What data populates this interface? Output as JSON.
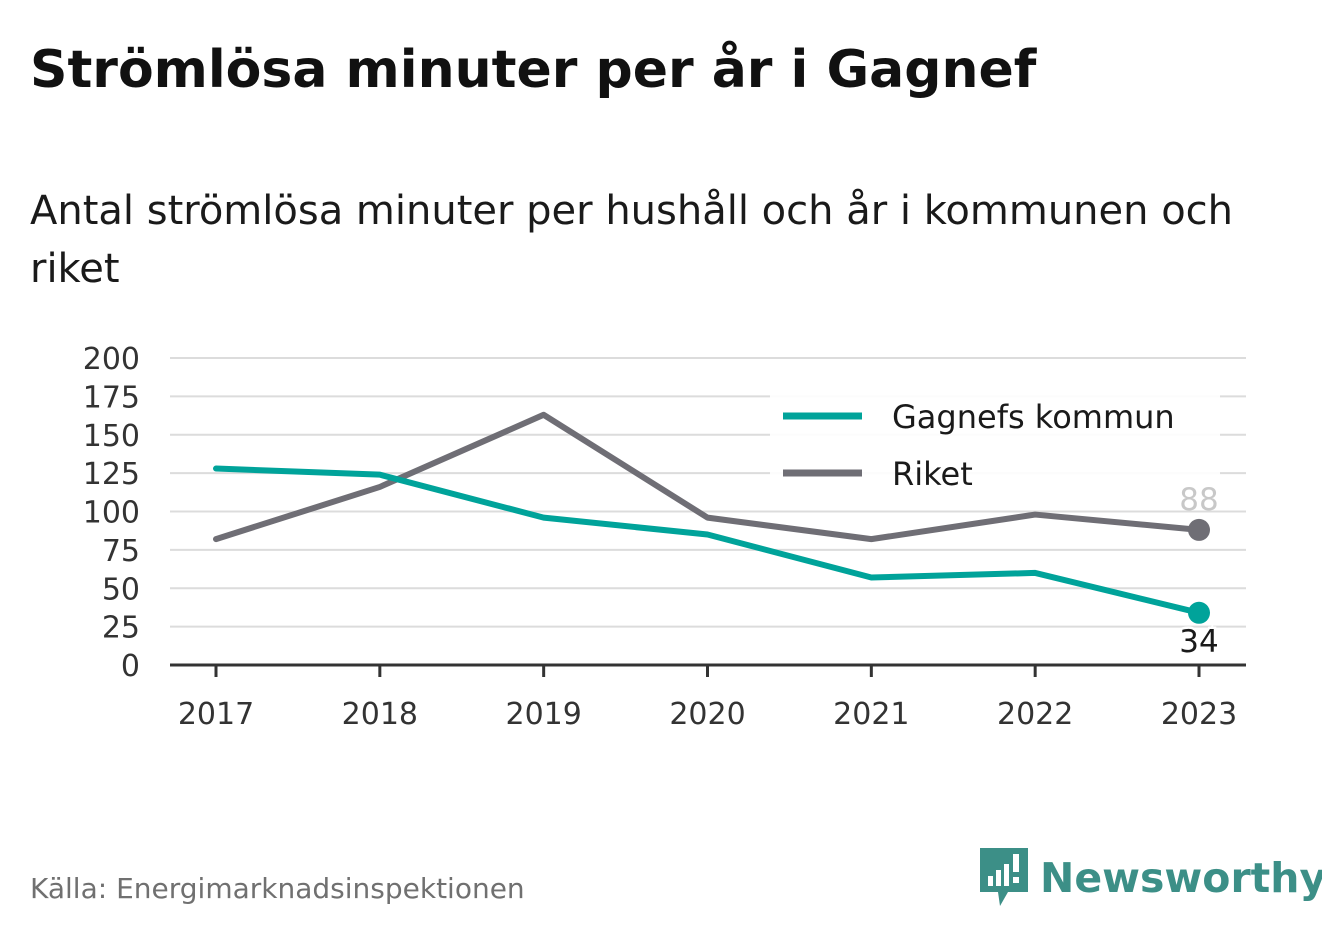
{
  "title": "Strömlösa minuter per år i Gagnef",
  "subtitle": "Antal strömlösa minuter per hushåll och år i kommunen och riket",
  "source": "Källa: Energimarknadsinspektionen",
  "brand": {
    "name": "Newsworthy",
    "icon": "bar-chart-speech-bubble-icon",
    "color": "#3c8f87"
  },
  "chart_data": {
    "type": "line",
    "x": [
      "2017",
      "2018",
      "2019",
      "2020",
      "2021",
      "2022",
      "2023"
    ],
    "ylim": [
      0,
      200
    ],
    "yticks": [
      "0",
      "25",
      "50",
      "75",
      "100",
      "125",
      "150",
      "175",
      "200"
    ],
    "grid": true,
    "legend_position": "top-right",
    "series": [
      {
        "name": "Gagnefs kommun",
        "color": "#00a39a",
        "values": [
          128,
          124,
          96,
          85,
          57,
          60,
          34
        ],
        "end_label": "34"
      },
      {
        "name": "Riket",
        "color": "#6f6e75",
        "values": [
          82,
          116,
          163,
          96,
          82,
          98,
          88
        ],
        "end_label": "88"
      }
    ]
  }
}
